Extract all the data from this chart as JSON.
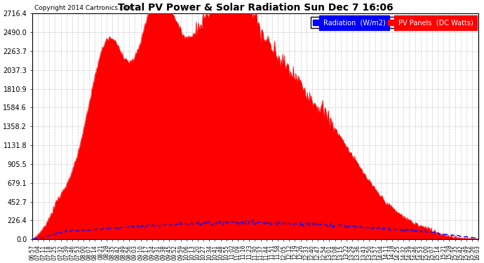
{
  "title": "Total PV Power & Solar Radiation Sun Dec 7 16:06",
  "copyright": "Copyright 2014 Cartronics.com",
  "legend_radiation": "Radiation  (W/m2)",
  "legend_pv": "PV Panels  (DC Watts)",
  "yticks": [
    0.0,
    226.4,
    452.7,
    679.1,
    905.5,
    1131.8,
    1358.2,
    1584.6,
    1810.9,
    2037.3,
    2263.7,
    2490.0,
    2716.4
  ],
  "ymax": 2716.4,
  "background_color": "#ffffff",
  "plot_bg_color": "#ffffff",
  "grid_color": "#bbbbbb",
  "radiation_color": "#0000ff",
  "pv_fill_color": "#ff0000",
  "pv_edge_color": "#ff0000"
}
